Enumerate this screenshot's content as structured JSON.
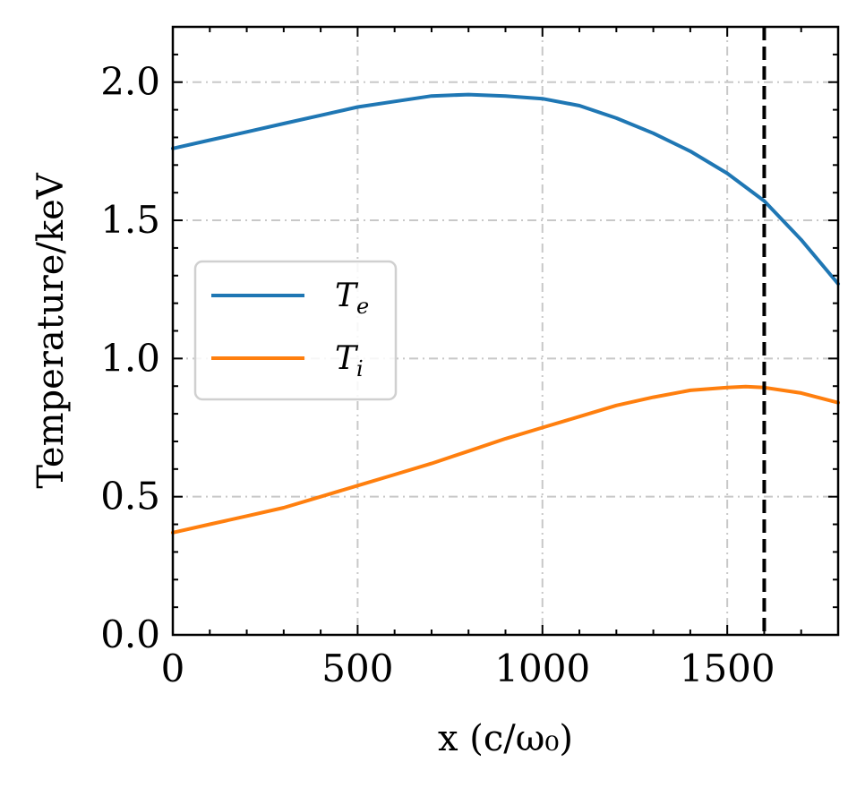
{
  "chart_data": {
    "type": "line",
    "title": "",
    "xlabel": "x (c/ω₀)",
    "ylabel": "Temperature/keV",
    "xlim": [
      0,
      1800
    ],
    "ylim": [
      0,
      2.2
    ],
    "xticks": [
      0,
      500,
      1000,
      1500
    ],
    "xtick_labels": [
      "0",
      "500",
      "1000",
      "1500"
    ],
    "yticks": [
      0.0,
      0.5,
      1.0,
      1.5,
      2.0
    ],
    "ytick_labels": [
      "0.0",
      "0.5",
      "1.0",
      "1.5",
      "2.0"
    ],
    "x_minor_step": 100,
    "y_minor_step": 0.1,
    "grid": true,
    "legend_position": "center-left",
    "vline": {
      "x": 1600,
      "style": "dashed",
      "color": "#000000"
    },
    "series": [
      {
        "name": "T_e",
        "legend_main": "T",
        "legend_sub": "e",
        "color": "#1f77b4",
        "x": [
          0,
          100,
          200,
          300,
          400,
          500,
          600,
          700,
          800,
          900,
          1000,
          1100,
          1200,
          1300,
          1400,
          1500,
          1600,
          1700,
          1800
        ],
        "values": [
          1.76,
          1.79,
          1.82,
          1.85,
          1.88,
          1.91,
          1.93,
          1.95,
          1.955,
          1.95,
          1.94,
          1.915,
          1.87,
          1.815,
          1.75,
          1.67,
          1.57,
          1.43,
          1.27
        ]
      },
      {
        "name": "T_i",
        "legend_main": "T",
        "legend_sub": "i",
        "color": "#ff7f0e",
        "x": [
          0,
          100,
          200,
          300,
          400,
          500,
          600,
          700,
          800,
          900,
          1000,
          1100,
          1200,
          1300,
          1400,
          1500,
          1550,
          1600,
          1700,
          1800
        ],
        "values": [
          0.37,
          0.4,
          0.43,
          0.46,
          0.5,
          0.54,
          0.58,
          0.62,
          0.665,
          0.71,
          0.75,
          0.79,
          0.83,
          0.86,
          0.885,
          0.895,
          0.898,
          0.895,
          0.875,
          0.84
        ]
      }
    ]
  },
  "colors": {
    "grid": "#c8c8c8",
    "axis": "#000000"
  }
}
